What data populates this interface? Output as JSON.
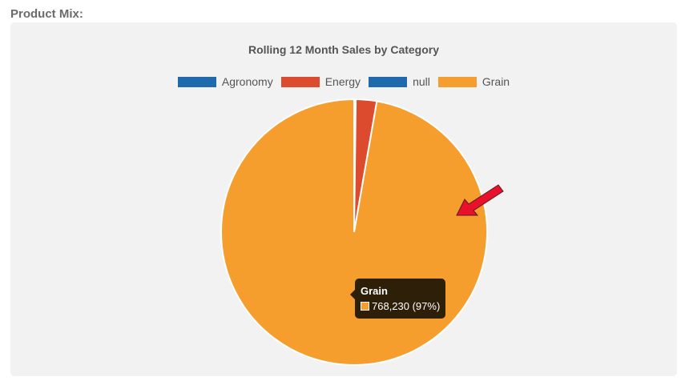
{
  "section": {
    "title": "Product Mix:"
  },
  "chart_data": {
    "type": "pie",
    "title": "Rolling 12 Month Sales by Category",
    "categories": [
      "Agronomy",
      "Energy",
      "null",
      "Grain"
    ],
    "values": [
      1600,
      20000,
      0,
      768230
    ],
    "colors": [
      "#1f69ad",
      "#dd4b2e",
      "#1f69ad",
      "#f59e2d"
    ],
    "legend_position": "top",
    "tooltip": {
      "category": "Grain",
      "text": "768,230 (97%)",
      "color": "#f59e2d"
    }
  },
  "annotation": {
    "arrow_color": "#e8102a"
  }
}
